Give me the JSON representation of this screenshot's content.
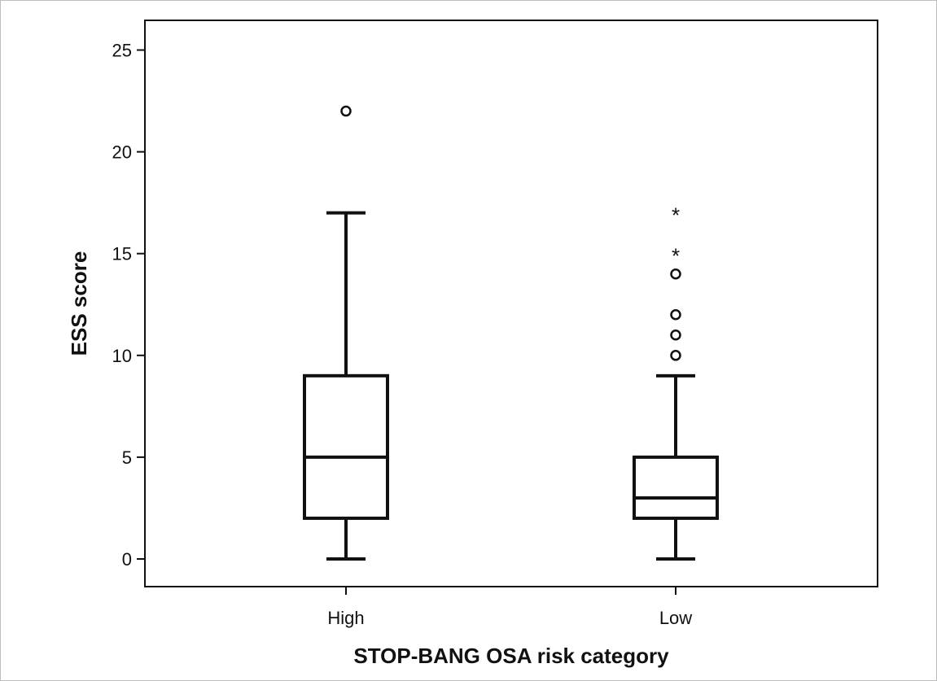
{
  "chart_data": {
    "type": "box",
    "xlabel": "STOP-BANG OSA risk category",
    "ylabel": "ESS score",
    "ylim": [
      -1.5,
      26.5
    ],
    "yticks": [
      0,
      5,
      10,
      15,
      20,
      25
    ],
    "ytick_labels": [
      "0",
      "5",
      "10",
      "15",
      "20",
      "25"
    ],
    "categories": [
      "High",
      "Low"
    ],
    "boxes": [
      {
        "category": "High",
        "whisker_low": 0,
        "q1": 2,
        "median": 5,
        "q3": 9,
        "whisker_high": 17,
        "outliers": [
          22
        ],
        "extremes": []
      },
      {
        "category": "Low",
        "whisker_low": 0,
        "q1": 2,
        "median": 3,
        "q3": 5,
        "whisker_high": 9,
        "outliers": [
          10,
          11,
          12,
          14
        ],
        "extremes": [
          15,
          17
        ]
      }
    ],
    "extreme_marker": "*",
    "grid": false,
    "legend": "none"
  },
  "style": {
    "line_color": "#111111",
    "background": "#ffffff"
  }
}
